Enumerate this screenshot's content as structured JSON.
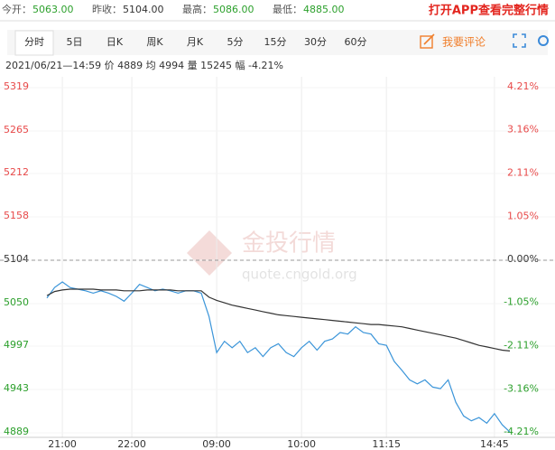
{
  "header": {
    "stats": [
      {
        "label": "今开：",
        "value": "5063.00",
        "color": "#2ca02c"
      },
      {
        "label": "昨收：",
        "value": "5104.00",
        "color": "#333333"
      },
      {
        "label": "最高：",
        "value": "5086.00",
        "color": "#2ca02c"
      },
      {
        "label": "最低：",
        "value": "4885.00",
        "color": "#2ca02c"
      }
    ],
    "promo": "打开APP查看完整行情"
  },
  "tabs": [
    "分时",
    "5日",
    "日K",
    "周K",
    "月K",
    "5分",
    "15分",
    "30分",
    "60分"
  ],
  "comment": "我要评论",
  "info": "2021/06/21—14:59  价 4889  均 4994  量 15245  幅 -4.21%",
  "watermark": {
    "title": "金投行情",
    "url": "quote.cngold.org"
  },
  "chart_data": {
    "type": "line",
    "categories": [
      null,
      null,
      "21:00",
      null,
      null,
      null,
      null,
      null,
      null,
      null,
      null,
      "22:00",
      null,
      null,
      null,
      null,
      null,
      null,
      null,
      null,
      null,
      null,
      "09:00",
      null,
      null,
      null,
      null,
      null,
      null,
      null,
      null,
      null,
      null,
      "10:00",
      null,
      null,
      null,
      null,
      null,
      null,
      null,
      null,
      null,
      null,
      "11:15",
      null,
      null,
      null,
      null,
      null,
      null,
      null,
      null,
      null,
      null,
      null,
      null,
      null,
      "14:45",
      null,
      null
    ],
    "series": [
      {
        "name": "价",
        "color": "#3b95d9",
        "values": [
          5057,
          5070,
          5077,
          5070,
          5068,
          5066,
          5063,
          5066,
          5063,
          5059,
          5053,
          5063,
          5074,
          5070,
          5066,
          5068,
          5066,
          5063,
          5066,
          5066,
          5063,
          5034,
          4989,
          5003,
          4995,
          5003,
          4989,
          4995,
          4984,
          4995,
          5000,
          4989,
          4984,
          4995,
          5003,
          4992,
          5003,
          5006,
          5014,
          5012,
          5021,
          5014,
          5012,
          5000,
          4998,
          4978,
          4967,
          4955,
          4950,
          4955,
          4946,
          4944,
          4955,
          4927,
          4910,
          4904,
          4908,
          4901,
          4913,
          4899,
          4890
        ]
      },
      {
        "name": "均",
        "color": "#333333",
        "values": [
          5060,
          5065,
          5067,
          5068,
          5068,
          5068,
          5068,
          5067,
          5067,
          5067,
          5066,
          5066,
          5066,
          5067,
          5067,
          5067,
          5067,
          5066,
          5066,
          5066,
          5066,
          5058,
          5054,
          5051,
          5048,
          5046,
          5044,
          5042,
          5040,
          5038,
          5036,
          5035,
          5034,
          5033,
          5032,
          5031,
          5030,
          5029,
          5028,
          5027,
          5026,
          5025,
          5024,
          5024,
          5023,
          5022,
          5021,
          5019,
          5017,
          5015,
          5013,
          5011,
          5009,
          5007,
          5004,
          5001,
          4998,
          4996,
          4994,
          4992,
          4991
        ]
      }
    ],
    "ylim": [
      4889,
      5319
    ],
    "yticks": [
      5319,
      5265,
      5212,
      5158,
      5104,
      5050,
      4997,
      4943,
      4889
    ],
    "y2lim": [
      -4.21,
      4.21
    ],
    "y2ticks": [
      {
        "value": 4.21,
        "label": "4.21%"
      },
      {
        "value": 3.16,
        "label": "3.16%"
      },
      {
        "value": 2.11,
        "label": "2.11%"
      },
      {
        "value": 1.05,
        "label": "1.05%"
      },
      {
        "value": 0,
        "label": "0.00%"
      },
      {
        "value": -1.05,
        "label": "-1.05%"
      },
      {
        "value": -2.11,
        "label": "-2.11%"
      },
      {
        "value": -3.16,
        "label": "-3.16%"
      },
      {
        "value": -4.21,
        "label": "-4.21%"
      }
    ],
    "baseline": 5104,
    "grid": true
  }
}
